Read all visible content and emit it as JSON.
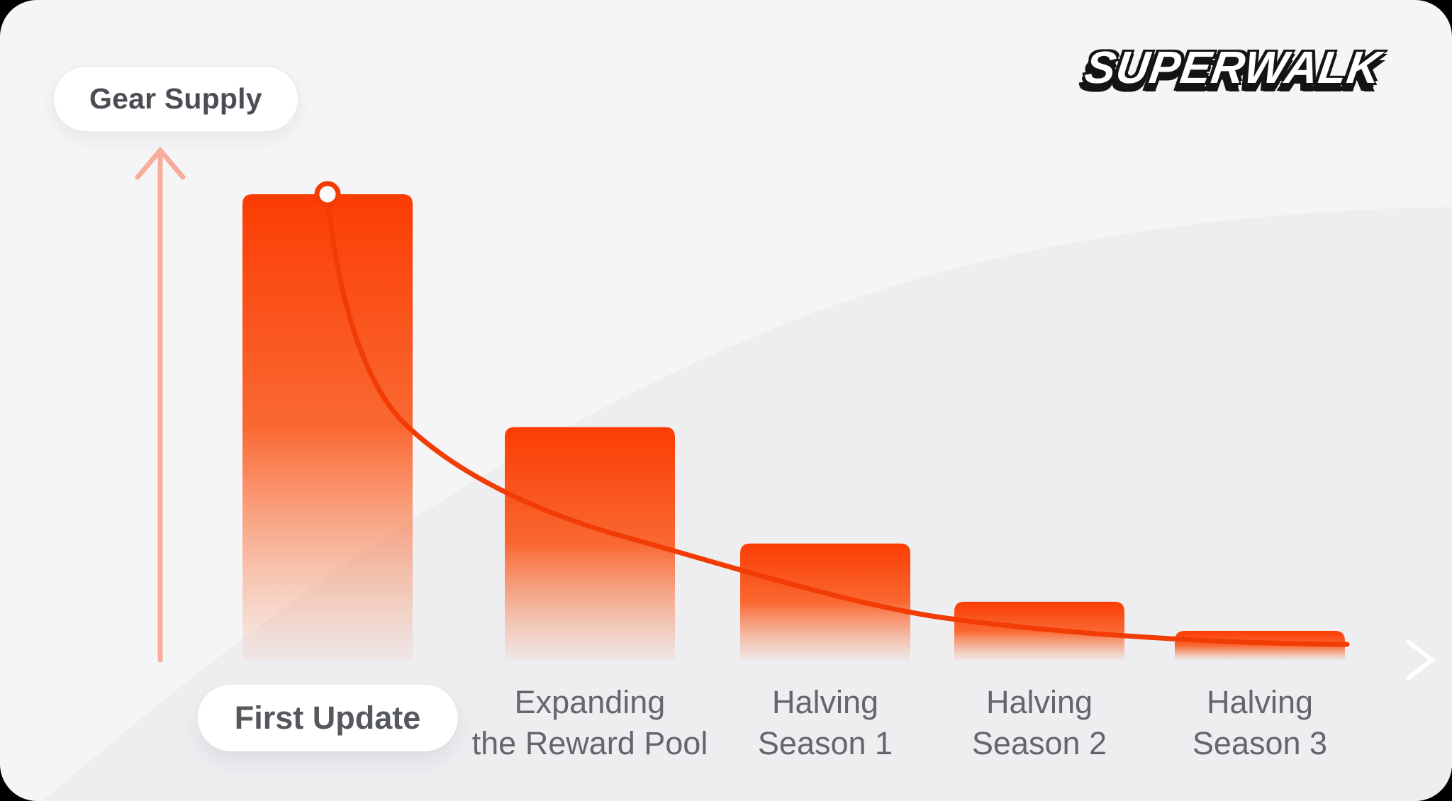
{
  "card": {
    "supply_badge": "Gear Supply",
    "brand_logo": "SUPERWALK"
  },
  "chart_data": {
    "type": "bar",
    "title": "Gear Supply",
    "categories": [
      "First Update",
      "Expanding the Reward Pool",
      "Halving Season 1",
      "Halving Season 2",
      "Halving Season 3"
    ],
    "categories_lines": [
      [
        "First Update"
      ],
      [
        "Expanding",
        "the Reward Pool"
      ],
      [
        "Halving",
        "Season 1"
      ],
      [
        "Halving",
        "Season 2"
      ],
      [
        "Halving",
        "Season 3"
      ]
    ],
    "series": [
      {
        "name": "Gear Supply",
        "values": [
          100,
          50,
          25,
          12.5,
          6.25
        ]
      }
    ],
    "values_are_relative_percent_of_first_bar": true,
    "xlabel": "",
    "ylabel": "Gear Supply",
    "y_axis_tick_labels": [],
    "grid": false,
    "legend": false,
    "highlighted_category_index": 0,
    "overlay": "exponential halving decay curve starting at a ring marker on top of the first bar",
    "colors": {
      "bar_gradient_top": "#FB3C03",
      "bar_gradient_bottom": "#FD7B42",
      "curve": "#F13D05",
      "axis": "#F6AE9B",
      "marker_fill": "#FBFBFB",
      "label_text": "#63666B",
      "badge_text": "#4A4E54",
      "card_background": "#F5F5F7",
      "background_swoosh": "#EEEEF1",
      "pill_background": "#FFFFFF"
    }
  }
}
